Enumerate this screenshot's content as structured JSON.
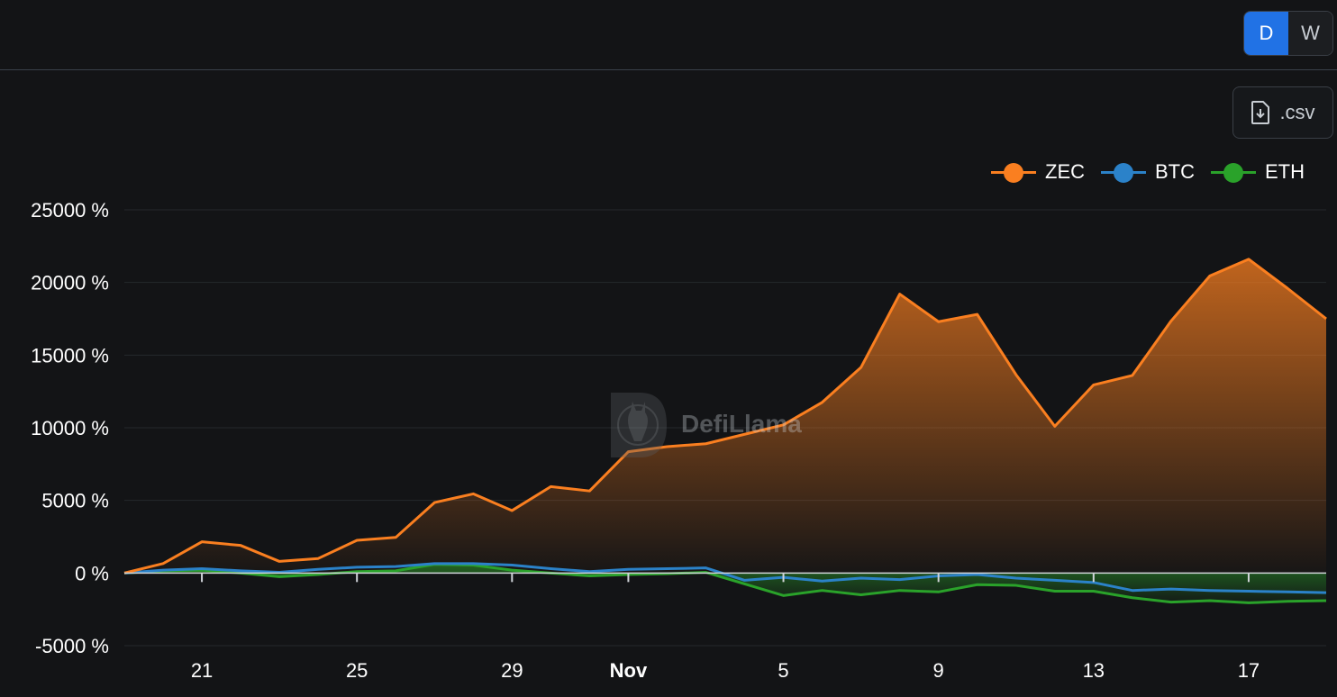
{
  "toggle": {
    "options": [
      "D",
      "W"
    ],
    "active": "D"
  },
  "csv_button": {
    "label": ".csv"
  },
  "watermark": {
    "text": "DefiLlama"
  },
  "colors": {
    "ZEC": "#fa7f20",
    "BTC": "#2b82c9",
    "ETH": "#2aa22a",
    "background": "#131416"
  },
  "chart_data": {
    "type": "area",
    "title": "",
    "xlabel": "",
    "ylabel": "",
    "y_unit": "%",
    "ylim": [
      -5000,
      25000
    ],
    "yticks": [
      -5000,
      0,
      5000,
      10000,
      15000,
      20000,
      25000
    ],
    "ytick_labels": [
      "-5000 %",
      "0 %",
      "5000 %",
      "10000 %",
      "15000 %",
      "20000 %",
      "25000 %"
    ],
    "x": [
      "Oct 19",
      "Oct 20",
      "Oct 21",
      "Oct 22",
      "Oct 23",
      "Oct 24",
      "Oct 25",
      "Oct 26",
      "Oct 27",
      "Oct 28",
      "Oct 29",
      "Oct 30",
      "Oct 31",
      "Nov 1",
      "Nov 2",
      "Nov 3",
      "Nov 4",
      "Nov 5",
      "Nov 6",
      "Nov 7",
      "Nov 8",
      "Nov 9",
      "Nov 10",
      "Nov 11",
      "Nov 12",
      "Nov 13",
      "Nov 14",
      "Nov 15",
      "Nov 16",
      "Nov 17",
      "Nov 18",
      "Nov 19"
    ],
    "xtick_labels": [
      {
        "at": "Oct 21",
        "label": "21",
        "bold": false
      },
      {
        "at": "Oct 25",
        "label": "25",
        "bold": false
      },
      {
        "at": "Oct 29",
        "label": "29",
        "bold": false
      },
      {
        "at": "Nov 1",
        "label": "Nov",
        "bold": true
      },
      {
        "at": "Nov 5",
        "label": "5",
        "bold": false
      },
      {
        "at": "Nov 9",
        "label": "9",
        "bold": false
      },
      {
        "at": "Nov 13",
        "label": "13",
        "bold": false
      },
      {
        "at": "Nov 17",
        "label": "17",
        "bold": false
      }
    ],
    "grid": true,
    "legend": "top-right",
    "series": [
      {
        "name": "ZEC",
        "values": [
          0,
          650,
          2150,
          1900,
          800,
          1000,
          2250,
          2450,
          4850,
          5450,
          4300,
          5950,
          5650,
          8350,
          8700,
          8900,
          9550,
          10200,
          11750,
          14150,
          19200,
          17300,
          17800,
          13650,
          10100,
          12950,
          13600,
          17350,
          20450,
          21600,
          19600,
          17500
        ]
      },
      {
        "name": "BTC",
        "values": [
          0,
          200,
          300,
          150,
          50,
          250,
          400,
          450,
          650,
          650,
          550,
          300,
          100,
          250,
          300,
          350,
          -500,
          -300,
          -550,
          -350,
          -450,
          -200,
          -100,
          -350,
          -500,
          -650,
          -1200,
          -1100,
          -1200,
          -1250,
          -1300,
          -1350
        ]
      },
      {
        "name": "ETH",
        "values": [
          0,
          150,
          200,
          0,
          -250,
          -100,
          100,
          150,
          600,
          550,
          200,
          0,
          -200,
          -100,
          -50,
          50,
          -750,
          -1550,
          -1200,
          -1500,
          -1200,
          -1300,
          -800,
          -850,
          -1250,
          -1250,
          -1700,
          -2000,
          -1900,
          -2050,
          -1950,
          -1900
        ]
      }
    ]
  }
}
